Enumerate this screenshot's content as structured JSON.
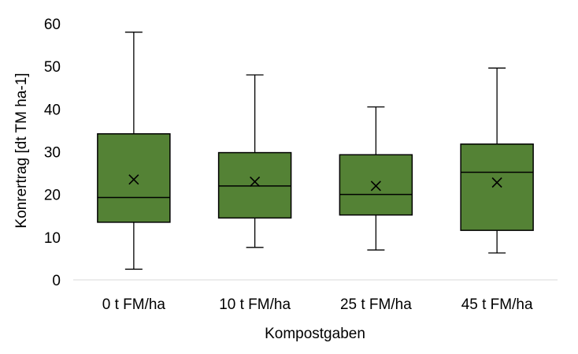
{
  "chart_data": {
    "type": "box",
    "title": "",
    "xlabel": "Kompostgaben",
    "ylabel": "Konrertrag [dt TM ha-1]",
    "ylim": [
      0,
      60
    ],
    "yticks": [
      0,
      10,
      20,
      30,
      40,
      50,
      60
    ],
    "grid": false,
    "legend": "none",
    "box_color": "#548235",
    "categories": [
      "0 t FM/ha",
      "10 t FM/ha",
      "25 t FM/ha",
      "45 t FM/ha"
    ],
    "boxes": [
      {
        "min": 2.5,
        "q1": 13.5,
        "median": 19.3,
        "q3": 34.2,
        "max": 58,
        "mean": 23.5
      },
      {
        "min": 7.6,
        "q1": 14.5,
        "median": 22,
        "q3": 29.8,
        "max": 48,
        "mean": 23
      },
      {
        "min": 7,
        "q1": 15.2,
        "median": 20,
        "q3": 29.3,
        "max": 40.5,
        "mean": 22
      },
      {
        "min": 6.3,
        "q1": 11.6,
        "median": 25.2,
        "q3": 31.8,
        "max": 49.6,
        "mean": 22.8
      }
    ]
  }
}
